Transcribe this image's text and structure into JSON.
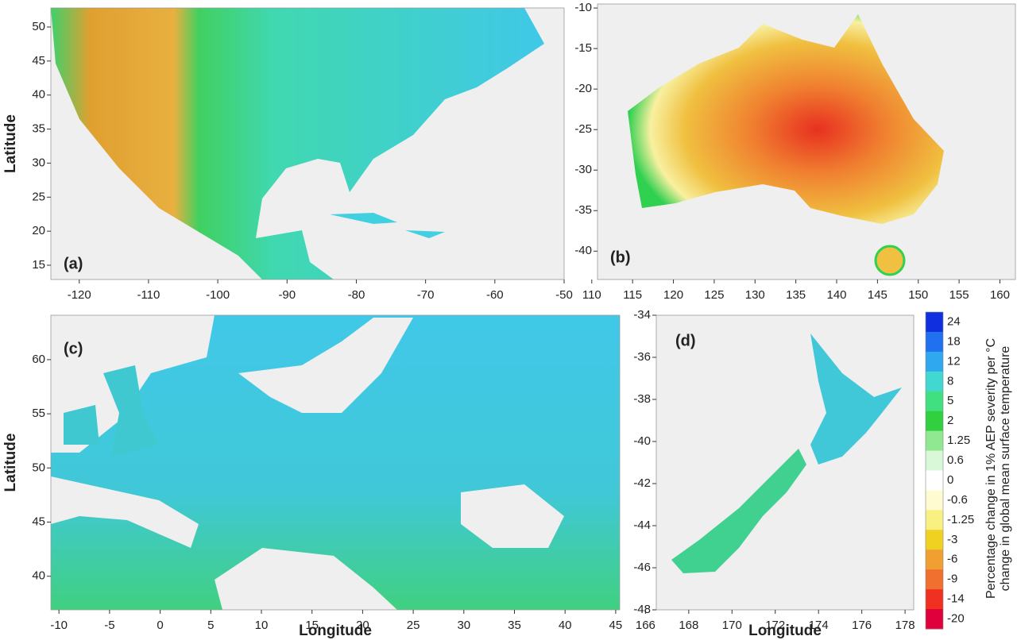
{
  "panels": [
    {
      "label": "(a)",
      "ylabel": "Latitude",
      "xlim": [
        -124.1,
        -50
      ],
      "ylim": [
        12.9,
        52.8
      ],
      "xticks": [
        -120,
        -110,
        -100,
        -90,
        -80,
        -70,
        -60,
        -50
      ],
      "yticks": [
        15,
        20,
        25,
        30,
        35,
        40,
        45,
        50
      ]
    },
    {
      "label": "(b)",
      "xlim": [
        110.7,
        161.9
      ],
      "ylim": [
        -43.5,
        -9.5
      ],
      "xticks": [
        110,
        115,
        120,
        125,
        130,
        135,
        140,
        145,
        150,
        155,
        160
      ],
      "yticks": [
        -40,
        -35,
        -30,
        -25,
        -20,
        -15,
        -10
      ]
    },
    {
      "label": "(c)",
      "ylabel": "Latitude",
      "xlabel": "Longitude",
      "xlim": [
        -10.8,
        45.4
      ],
      "ylim": [
        36.9,
        64.1
      ],
      "xticks": [
        -10,
        -5,
        0,
        5,
        10,
        15,
        20,
        25,
        30,
        35,
        40,
        45
      ],
      "yticks": [
        40,
        45,
        50,
        55,
        60
      ]
    },
    {
      "label": "(d)",
      "xlabel": "Longitude",
      "xlim": [
        166.5,
        178.4
      ],
      "ylim": [
        -48,
        -34
      ],
      "xticks": [
        166,
        168,
        170,
        172,
        174,
        176,
        178
      ],
      "yticks": [
        -48,
        -46,
        -44,
        -42,
        -40,
        -38,
        -36,
        -34
      ]
    }
  ],
  "colorbar": {
    "title": [
      "Percentage change in 1% AEP severity per °C",
      "change in global mean surface temperature"
    ],
    "labels": [
      24,
      18,
      12,
      8,
      5,
      2,
      1.25,
      0.6,
      0,
      -0.6,
      -1.25,
      -3,
      -6,
      -9,
      -14,
      -20
    ],
    "colors": [
      "#1030e0",
      "#2070f0",
      "#30a8f0",
      "#40d8d0",
      "#40e080",
      "#30d040",
      "#90e890",
      "#d8f8d8",
      "#ffffff",
      "#fffbd0",
      "#f8f080",
      "#f0d020",
      "#f0a030",
      "#f07030",
      "#f03020",
      "#e0003c"
    ]
  }
}
